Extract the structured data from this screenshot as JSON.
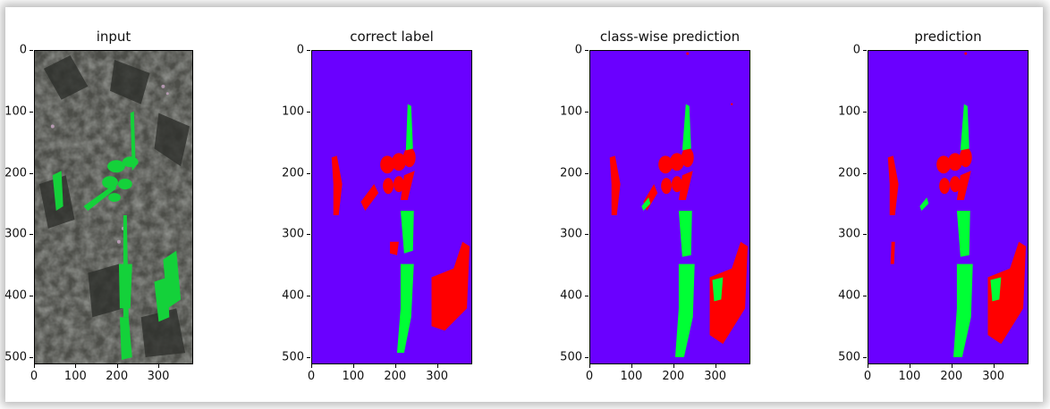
{
  "panels": [
    {
      "title": "input",
      "kind": "photo"
    },
    {
      "title": "correct label",
      "kind": "label"
    },
    {
      "title": "class-wise prediction",
      "kind": "classwise"
    },
    {
      "title": "prediction",
      "kind": "prediction"
    }
  ],
  "axes": {
    "y_ticks": [
      "0",
      "100",
      "200",
      "300",
      "400",
      "500"
    ],
    "x_ticks": [
      "0",
      "100",
      "200",
      "300"
    ],
    "y_values": [
      0,
      100,
      200,
      300,
      400,
      500
    ],
    "x_values": [
      0,
      100,
      200,
      300
    ],
    "y_max": 512,
    "x_max": 384
  },
  "colors": {
    "background_class": "#6a00ff",
    "class_red": "#ff0000",
    "class_green": "#00ff35",
    "soil": "#4a4a46"
  }
}
